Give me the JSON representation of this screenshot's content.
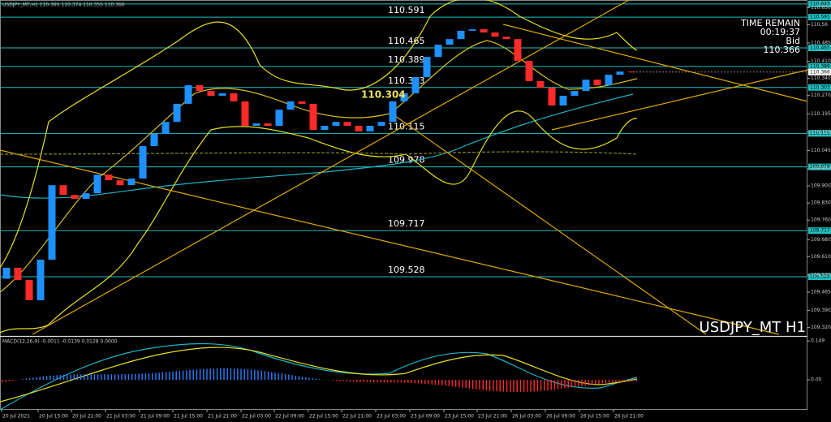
{
  "header": "USDJPY_MT,H1  110.365 110.374 110.355 110.366",
  "info": {
    "time_remain_label": "TIME REMAIN",
    "time_remain": "00:19:37",
    "bid_label": "Bid",
    "bid": "110.366"
  },
  "symbol": "USDJPY_MT H1",
  "highlight_price": "110.304",
  "chart_data": {
    "type": "candlestick",
    "open": 109.52,
    "values": [
      109.565,
      109.515,
      109.432,
      109.598,
      109.903,
      109.863,
      109.847,
      109.87,
      109.946,
      109.923,
      109.903,
      109.93,
      110.063,
      110.113,
      110.162,
      110.236,
      110.312,
      110.289,
      110.269,
      110.279,
      110.246,
      110.146,
      110.156,
      110.146,
      110.212,
      110.246,
      110.236,
      110.129,
      110.146,
      110.162,
      110.146,
      110.123,
      110.146,
      110.162,
      110.246,
      110.279,
      110.345,
      110.428,
      110.478,
      110.501,
      110.535,
      110.541,
      110.528,
      110.511,
      110.501,
      110.412,
      110.329,
      110.302,
      110.229,
      110.269,
      110.289,
      110.335,
      110.312,
      110.355,
      110.368,
      110.366
    ],
    "up_color": "#1e90ff",
    "down_color": "#ff2a2a",
    "ylim": [
      109.289,
      110.661
    ],
    "yticks": [
      {
        "value": 110.63,
        "label": "110.630"
      },
      110.56,
      110.485,
      {
        "value": 110.41,
        "label": "110.410"
      },
      {
        "value": 110.34,
        "label": "110.340"
      },
      {
        "value": 110.27,
        "label": "110.270"
      },
      110.195,
      {
        "value": 110.12,
        "label": "110.120"
      },
      110.045,
      {
        "value": 109.97,
        "label": "109.970"
      },
      {
        "value": 109.9,
        "label": "109.900"
      },
      {
        "value": 109.83,
        "label": "109.830"
      },
      {
        "value": 109.76,
        "label": "109.760"
      },
      {
        "value": 109.68,
        "label": "109.680"
      },
      {
        "value": 109.61,
        "label": "109.610"
      },
      109.535,
      109.465,
      {
        "value": 109.39,
        "label": "109.390"
      },
      {
        "value": 109.32,
        "label": "109.320"
      }
    ],
    "levels": [
      110.645,
      110.591,
      110.465,
      110.389,
      110.303,
      110.115,
      109.978,
      109.717,
      109.528
    ],
    "level_color": "#20c0c0",
    "time_labels": [
      "20 Jul 2021",
      "20 Jul 15:00",
      "20 Jul 21:00",
      "21 Jul 03:00",
      "21 Jul 09:00",
      "21 Jul 15:00",
      "21 Jul 21:00",
      "22 Jul 03:00",
      "22 Jul 09:00",
      "22 Jul 15:00",
      "22 Jul 21:00",
      "23 Jul 03:00",
      "23 Jul 09:00",
      "23 Jul 15:00",
      "23 Jul 21:00",
      "26 Jul 03:00",
      "26 Jul 09:00",
      "26 Jul 15:00",
      "26 Jul 21:00"
    ],
    "macd": {
      "label": "MACD(12,26,9) -0.0011 -0.0139 0.0128 0.0000",
      "ylim": [
        -0.115,
        0.165
      ],
      "yticks": [
        0.149,
        {
          "value": 0,
          "label": "0.00"
        }
      ]
    }
  }
}
